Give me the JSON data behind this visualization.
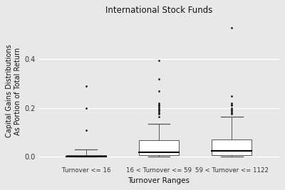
{
  "title": "International Stock Funds",
  "xlabel": "Turnover Ranges",
  "ylabel": "Capital Gains Distributions\nAs Portion of Total Return",
  "categories": [
    "Turnover <= 16",
    "16 < Turnover <= 59",
    "59 < Turnover <= 1122"
  ],
  "background_color": "#E8E8E8",
  "box_facecolor": "#FFFFFF",
  "box_edgecolor": "#555555",
  "median_color": "#000000",
  "whisker_color": "#555555",
  "outlier_color": "#1a1a1a",
  "grid_color": "#FFFFFF",
  "ylim": [
    -0.03,
    0.57
  ],
  "yticks": [
    0.0,
    0.2,
    0.4
  ],
  "boxes": [
    {
      "q1": 0.0,
      "median": 0.001,
      "q3": 0.007,
      "whisker_low": 0.0,
      "whisker_high": 0.03,
      "outliers": [
        0.11,
        0.2,
        0.29
      ]
    },
    {
      "q1": 0.007,
      "median": 0.018,
      "q3": 0.068,
      "whisker_low": 0.0,
      "whisker_high": 0.135,
      "outliers": [
        0.165,
        0.175,
        0.18,
        0.185,
        0.19,
        0.195,
        0.2,
        0.205,
        0.21,
        0.215,
        0.22,
        0.27,
        0.32,
        0.395
      ]
    },
    {
      "q1": 0.008,
      "median": 0.025,
      "q3": 0.072,
      "whisker_low": 0.0,
      "whisker_high": 0.165,
      "outliers": [
        0.175,
        0.18,
        0.185,
        0.19,
        0.195,
        0.2,
        0.21,
        0.215,
        0.22,
        0.25,
        0.53
      ]
    }
  ]
}
